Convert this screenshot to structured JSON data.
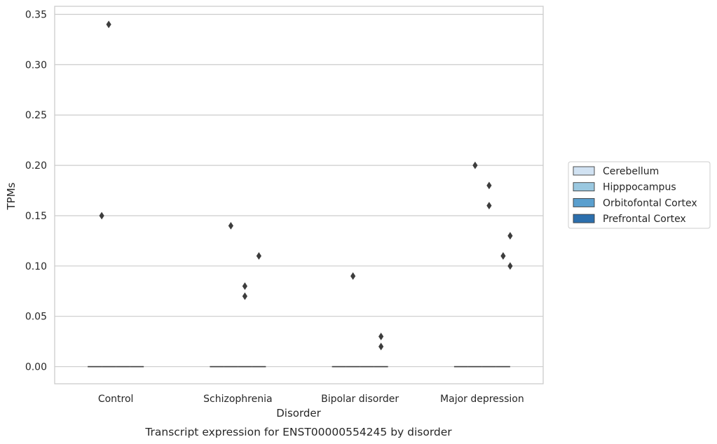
{
  "caption": "Transcript expression for ENST00000554245 by disorder",
  "chart_data": {
    "type": "box",
    "xlabel": "Disorder",
    "ylabel": "TPMs",
    "categories": [
      "Control",
      "Schizophrenia",
      "Bipolar disorder",
      "Major depression"
    ],
    "ylim": [
      -0.017,
      0.358
    ],
    "yticks": [
      0.0,
      0.05,
      0.1,
      0.15,
      0.2,
      0.25,
      0.3,
      0.35
    ],
    "ytick_labels": [
      "0.00",
      "0.05",
      "0.10",
      "0.15",
      "0.20",
      "0.25",
      "0.30",
      "0.35"
    ],
    "grid": "horizontal",
    "legend_position": "right",
    "series": [
      {
        "name": "Cerebellum",
        "color": "#d1e2f2",
        "median": [
          0,
          0,
          0,
          0
        ],
        "outliers": [
          [],
          [],
          [],
          []
        ]
      },
      {
        "name": "Hipppocampus",
        "color": "#9ac8e0",
        "median": [
          0,
          0,
          0,
          0
        ],
        "outliers": [
          [
            0.34
          ],
          [
            0.14
          ],
          [
            0.09
          ],
          [
            0.2
          ]
        ]
      },
      {
        "name": "Orbitofontal Cortex",
        "color": "#5a9fce",
        "median": [
          0,
          0,
          0,
          0
        ],
        "outliers": [
          [],
          [
            0.08,
            0.07
          ],
          [],
          [
            0.18,
            0.16
          ]
        ]
      },
      {
        "name": "Prefrontal Cortex",
        "color": "#2c6fad",
        "median": [
          0,
          0,
          0,
          0
        ],
        "outliers": [
          [],
          [
            0.11
          ],
          [
            0.03,
            0.02
          ],
          [
            0.11
          ]
        ]
      }
    ],
    "extra_outliers": [
      {
        "category": "Control",
        "slot": 0.5,
        "values": [
          0.15
        ]
      },
      {
        "category": "Major depression",
        "slot": 3.5,
        "values": [
          0.13,
          0.1
        ]
      }
    ]
  }
}
